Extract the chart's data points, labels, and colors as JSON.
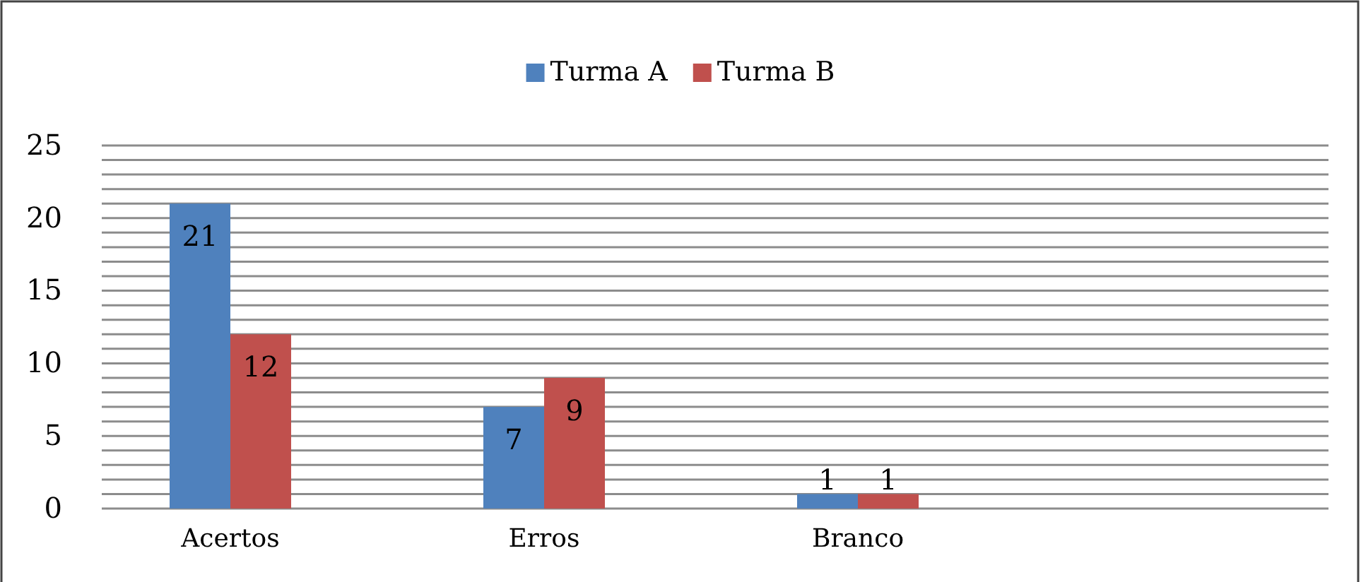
{
  "chart_data": {
    "type": "bar",
    "categories": [
      "Acertos",
      "Erros",
      "Branco",
      null
    ],
    "series": [
      {
        "name": "Turma A",
        "color": "#4f81bd",
        "values": [
          21,
          7,
          1,
          null
        ]
      },
      {
        "name": "Turma B",
        "color": "#c0504d",
        "values": [
          12,
          9,
          1,
          null
        ]
      }
    ],
    "ylim": [
      0,
      25
    ],
    "yticks": [
      0,
      {
        "value": 1,
        "label": null
      },
      {
        "value": 2,
        "label": null
      },
      {
        "value": 3,
        "label": null
      },
      {
        "value": 4,
        "label": null
      },
      5,
      {
        "value": 6,
        "label": null
      },
      {
        "value": 7,
        "label": null
      },
      {
        "value": 8,
        "label": null
      },
      {
        "value": 9,
        "label": null
      },
      10,
      {
        "value": 11,
        "label": null
      },
      {
        "value": 12,
        "label": null
      },
      {
        "value": 13,
        "label": null
      },
      {
        "value": 14,
        "label": null
      },
      15,
      {
        "value": 16,
        "label": null
      },
      {
        "value": 17,
        "label": null
      },
      {
        "value": 18,
        "label": null
      },
      {
        "value": 19,
        "label": null
      },
      20,
      {
        "value": 21,
        "label": null
      },
      {
        "value": 22,
        "label": null
      },
      {
        "value": 23,
        "label": null
      },
      {
        "value": 24,
        "label": null
      },
      25
    ],
    "grid": "y",
    "legend": "top",
    "data_labels": true
  }
}
